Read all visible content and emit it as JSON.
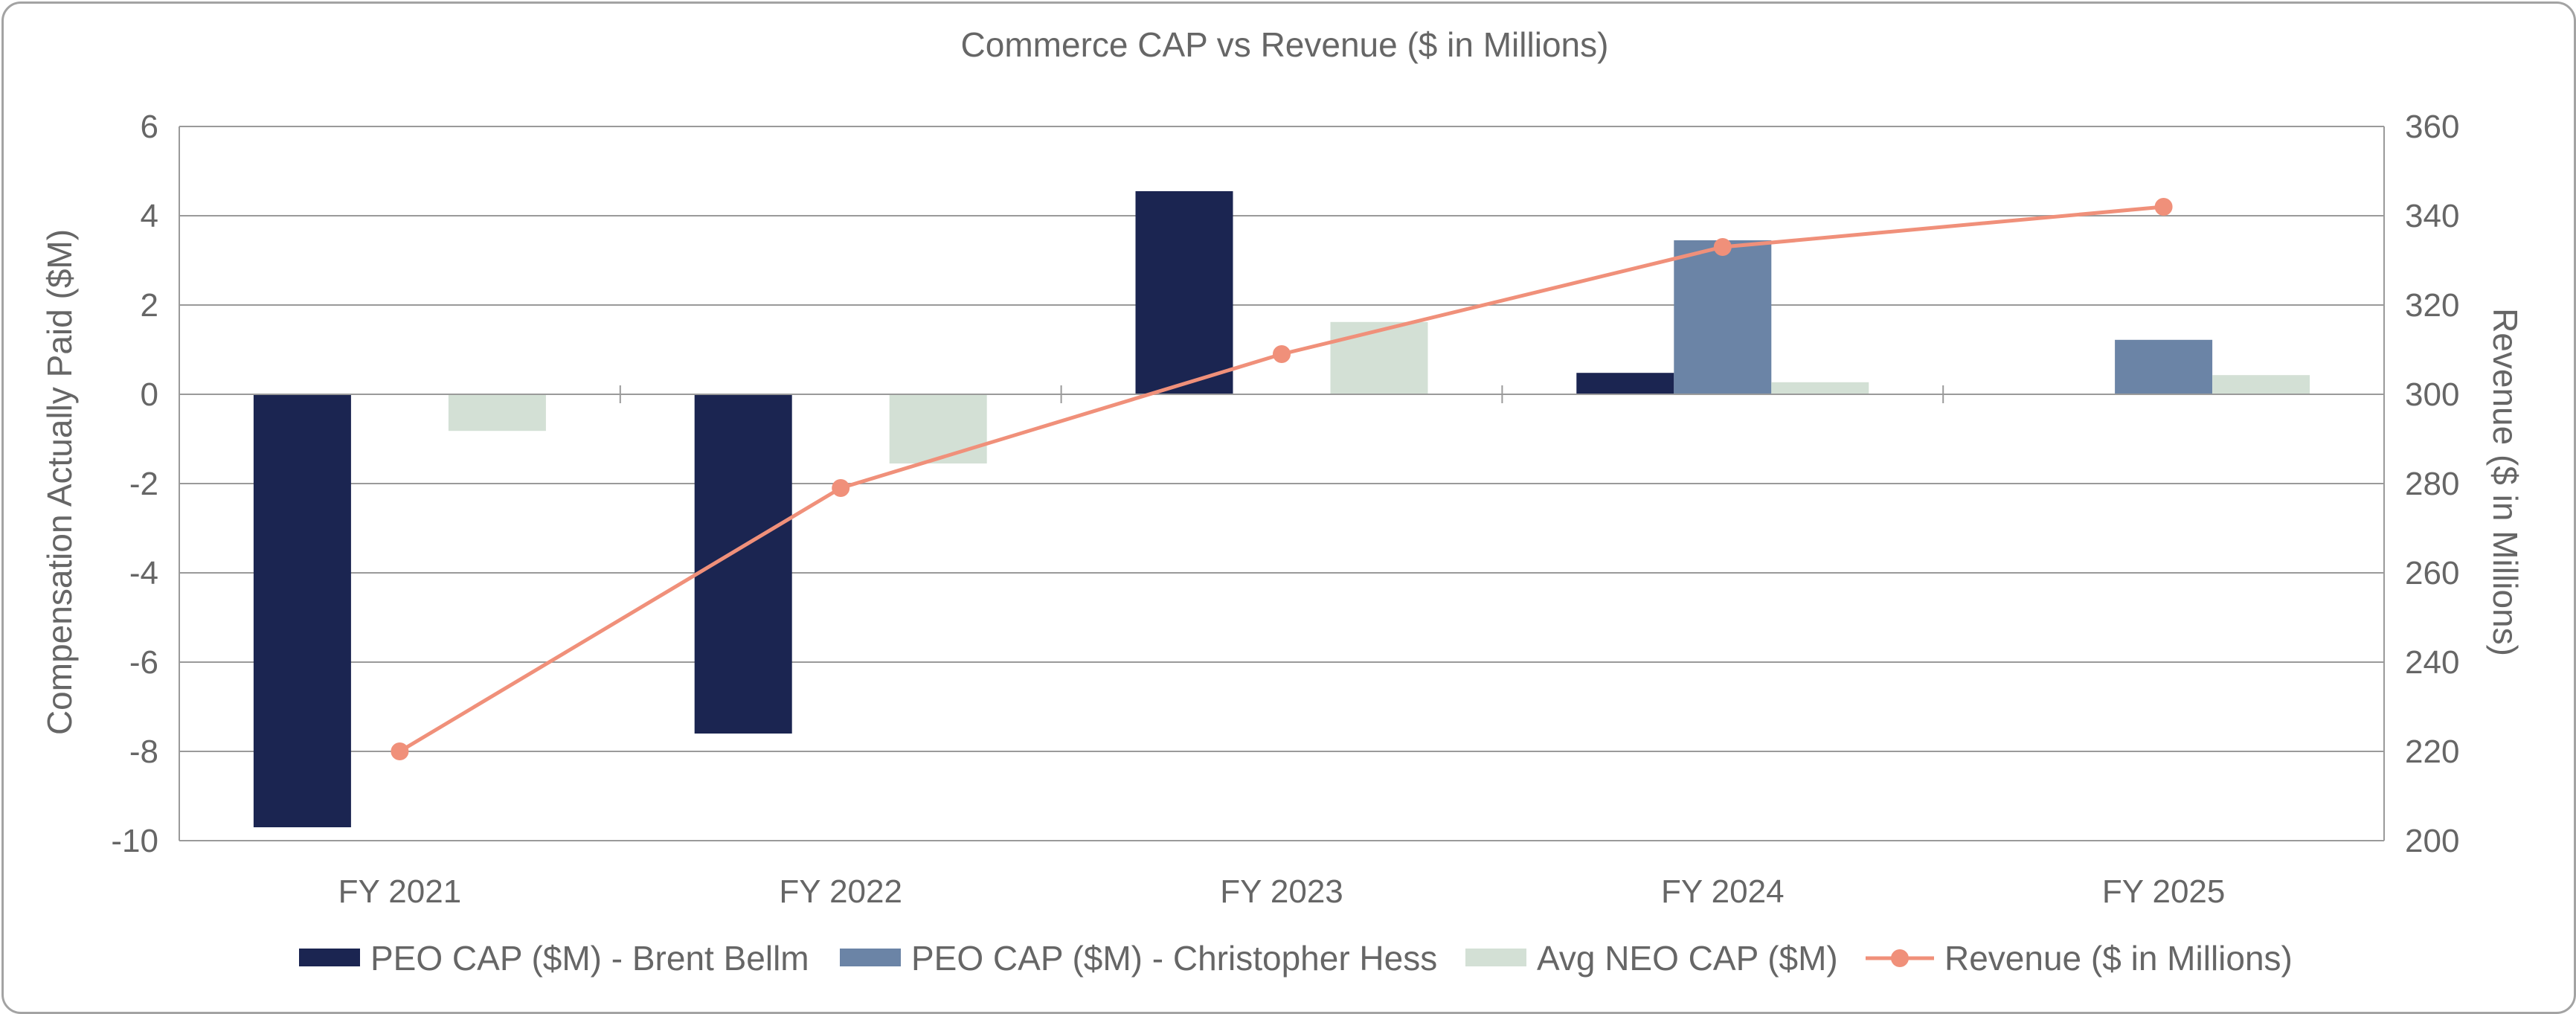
{
  "chart_data": {
    "type": "bar",
    "title": "Commerce CAP vs Revenue ($ in Millions)",
    "categories": [
      "FY 2021",
      "FY 2022",
      "FY 2023",
      "FY 2024",
      "FY 2025"
    ],
    "ylabel": "Compensation Actually Paid ($M)",
    "ylabel_right": "Revenue ($ in Millions)",
    "ylim": [
      -10,
      6
    ],
    "y_ticks": [
      "6",
      "4",
      "2",
      "0",
      "-2",
      "-4",
      "-6",
      "-8",
      "-10"
    ],
    "ylim_right": [
      200,
      360
    ],
    "y_right_ticks": [
      "360",
      "340",
      "320",
      "300",
      "280",
      "260",
      "240",
      "220",
      "200"
    ],
    "grid": true,
    "legend_position": "bottom",
    "series": [
      {
        "name": "PEO CAP ($M) - Brent Bellm",
        "type": "bar",
        "color": "#1b2551",
        "values": [
          -9.7,
          -7.6,
          4.55,
          0.48,
          null
        ]
      },
      {
        "name": "PEO CAP ($M) - Christopher Hess",
        "type": "bar",
        "color": "#6b84a6",
        "values": [
          null,
          null,
          null,
          3.45,
          1.22
        ]
      },
      {
        "name": "Avg NEO CAP ($M)",
        "type": "bar",
        "color": "#d3e0d5",
        "values": [
          -0.82,
          -1.55,
          1.62,
          0.27,
          0.43
        ]
      },
      {
        "name": "Revenue ($ in Millions)",
        "type": "line",
        "axis": "right",
        "color": "#f0907a",
        "values": [
          220,
          279,
          309,
          333,
          342
        ]
      }
    ]
  }
}
